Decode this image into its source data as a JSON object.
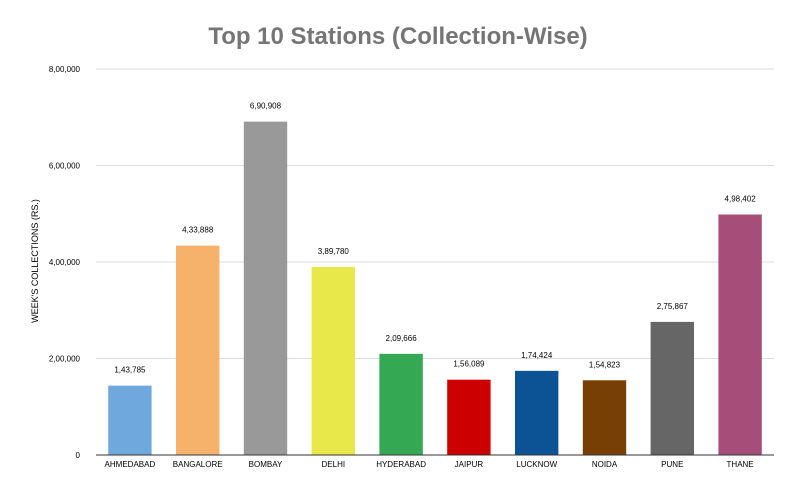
{
  "chart_data": {
    "type": "bar",
    "title": "Top 10 Stations (Collection-Wise)",
    "xlabel": "",
    "ylabel": "WEEK'S COLLECTIONS (RS.)",
    "ylim": [
      0,
      800000
    ],
    "yticks": [
      0,
      200000,
      400000,
      600000,
      800000
    ],
    "ytick_labels": [
      "0",
      "2,00,000",
      "4,00,000",
      "6,00,000",
      "8,00,000"
    ],
    "grid": true,
    "legend": "none",
    "categories": [
      "AHMEDABAD",
      "BANGALORE",
      "BOMBAY",
      "DELHI",
      "HYDERABAD",
      "JAIPUR",
      "LUCKNOW",
      "NOIDA",
      "PUNE",
      "THANE"
    ],
    "values": [
      143785,
      433888,
      690908,
      389780,
      209666,
      156089,
      174424,
      154823,
      275867,
      498402
    ],
    "value_labels": [
      "1,43,785",
      "4,33,888",
      "6,90,908",
      "3,89,780",
      "2,09,666",
      "1,56,089",
      "1,74,424",
      "1,54,823",
      "2,75,867",
      "4,98,402"
    ],
    "colors": [
      "#6fa8dc",
      "#f6b26b",
      "#999999",
      "#e9e84a",
      "#34a853",
      "#cc0000",
      "#0b5394",
      "#783f04",
      "#666666",
      "#a64d79"
    ]
  },
  "style": {
    "title_color": "#757575",
    "grid_color": "#dddddd",
    "axis_color": "#333333",
    "text_color": "#000000"
  }
}
